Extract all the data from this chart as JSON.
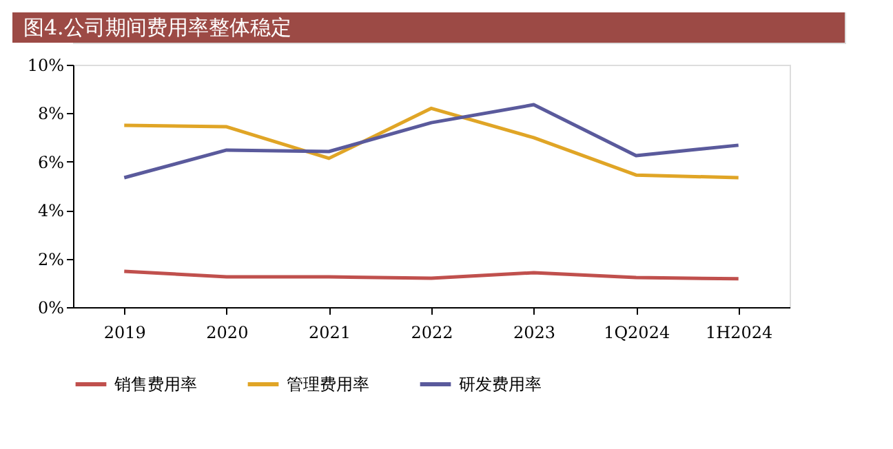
{
  "chart_data": {
    "type": "line",
    "title": "图4.公司期间费用率整体稳定",
    "categories": [
      "2019",
      "2020",
      "2021",
      "2022",
      "2023",
      "1Q2024",
      "1H2024"
    ],
    "series": [
      {
        "name": "销售费用率",
        "color": "#c0504d",
        "values": [
          1.48,
          1.25,
          1.25,
          1.19,
          1.42,
          1.22,
          1.17
        ]
      },
      {
        "name": "管理费用率",
        "color": "#e0a526",
        "values": [
          7.5,
          7.44,
          6.14,
          8.2,
          6.99,
          5.45,
          5.34
        ]
      },
      {
        "name": "研发费用率",
        "color": "#5a5a9c",
        "values": [
          5.34,
          6.48,
          6.42,
          7.61,
          8.35,
          6.25,
          6.68
        ]
      }
    ],
    "ylim": [
      0,
      10
    ],
    "yticks": [
      {
        "value": 0,
        "label": "0%"
      },
      {
        "value": 2,
        "label": "2%"
      },
      {
        "value": 4,
        "label": "4%"
      },
      {
        "value": 6,
        "label": "6%"
      },
      {
        "value": 8,
        "label": "8%"
      },
      {
        "value": 10,
        "label": "10%"
      }
    ],
    "grid": false,
    "legend": "bottom",
    "marker": "none",
    "line_style": "solid"
  }
}
